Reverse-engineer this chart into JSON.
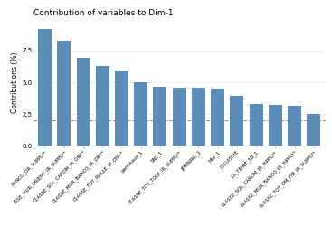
{
  "title": "Contribution of variables to Dim-1",
  "ylabel": "Contributions (%)",
  "ylim": [
    0,
    10
  ],
  "yticks": [
    0.0,
    2.5,
    5.0,
    7.5
  ],
  "hline": 2.0,
  "bar_color": "#5b8db8",
  "background_color": "#ffffff",
  "grid_color": "#e8e8e8",
  "categories": [
    "BANCO_OR_SUPPLY*",
    "ISSE_MUR_ORIENT_IR_SUPPLY*",
    "CLASSE_SOL_CAROM_IR_ONY*",
    "CLASSE_MUR_BANCO_IR_ONY*",
    "CLASSE_TOT_PAILLE_IR_ONY*",
    "panneaux_1",
    "SNL_1",
    "CLASSE_TOT_TOLE_IR_SUPPLY*",
    "JPRINPAL_1",
    "Mur_1",
    "D.CUISINE",
    "LA_TRINE_SB_1",
    "CLASSE_SOL_CAROM_IR_HIPPLY*",
    "CLASSE_MUR_BANCO_IR_HIPPLY*",
    "CLASSE_TOT_OM_FIB_IR_SUPPLY*"
  ],
  "values": [
    9.2,
    8.3,
    6.9,
    6.3,
    5.9,
    5.0,
    4.65,
    4.6,
    4.55,
    4.5,
    3.9,
    3.3,
    3.2,
    3.15,
    2.5
  ],
  "title_fontsize": 6.5,
  "label_fontsize": 3.8,
  "ylabel_fontsize": 5.5,
  "ytick_fontsize": 5.0
}
